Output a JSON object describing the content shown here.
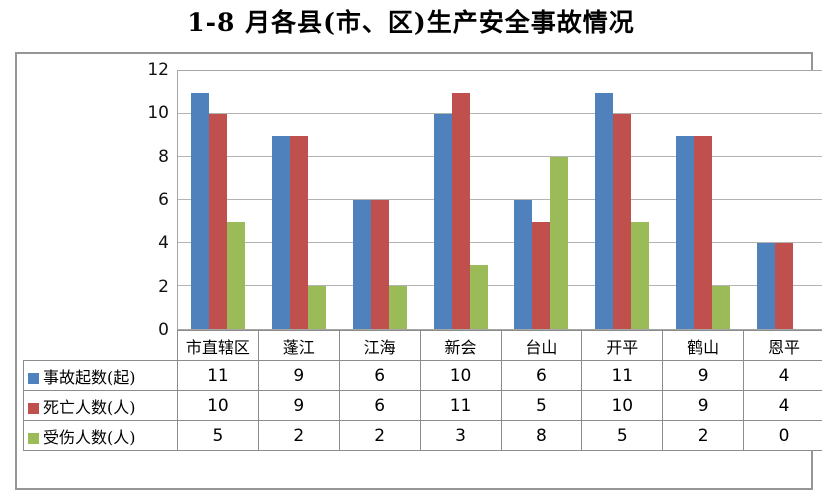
{
  "title": "1-8 月各县(市、区)生产安全事故情况",
  "colors": {
    "series_accidents": "#4F81BD",
    "series_deaths": "#C0504D",
    "series_injuries": "#9BBB59",
    "gridline": "#B3B3B3",
    "plot_border": "#A6A6A6",
    "frame_border": "#969696",
    "table_border": "#8C8C8C"
  },
  "chart_data": {
    "type": "bar",
    "title": "1-8 月各县(市、区)生产安全事故情况",
    "categories": [
      "市直辖区",
      "蓬江",
      "江海",
      "新会",
      "台山",
      "开平",
      "鹤山",
      "恩平"
    ],
    "series": [
      {
        "id": "accidents",
        "name": "事故起数(起)",
        "color": "#4F81BD",
        "values": [
          11,
          9,
          6,
          10,
          6,
          11,
          9,
          4
        ]
      },
      {
        "id": "deaths",
        "name": "死亡人数(人)",
        "color": "#C0504D",
        "values": [
          10,
          9,
          6,
          11,
          5,
          10,
          9,
          4
        ]
      },
      {
        "id": "injuries",
        "name": "受伤人数(人)",
        "color": "#9BBB59",
        "values": [
          5,
          2,
          2,
          3,
          8,
          5,
          2,
          0
        ]
      }
    ],
    "xlabel": "",
    "ylabel": "",
    "ylim": [
      0,
      12
    ],
    "yticks": [
      0,
      2,
      4,
      6,
      8,
      10,
      12
    ],
    "grid": true,
    "legend_position": "table-left",
    "data_table_shown": true
  }
}
